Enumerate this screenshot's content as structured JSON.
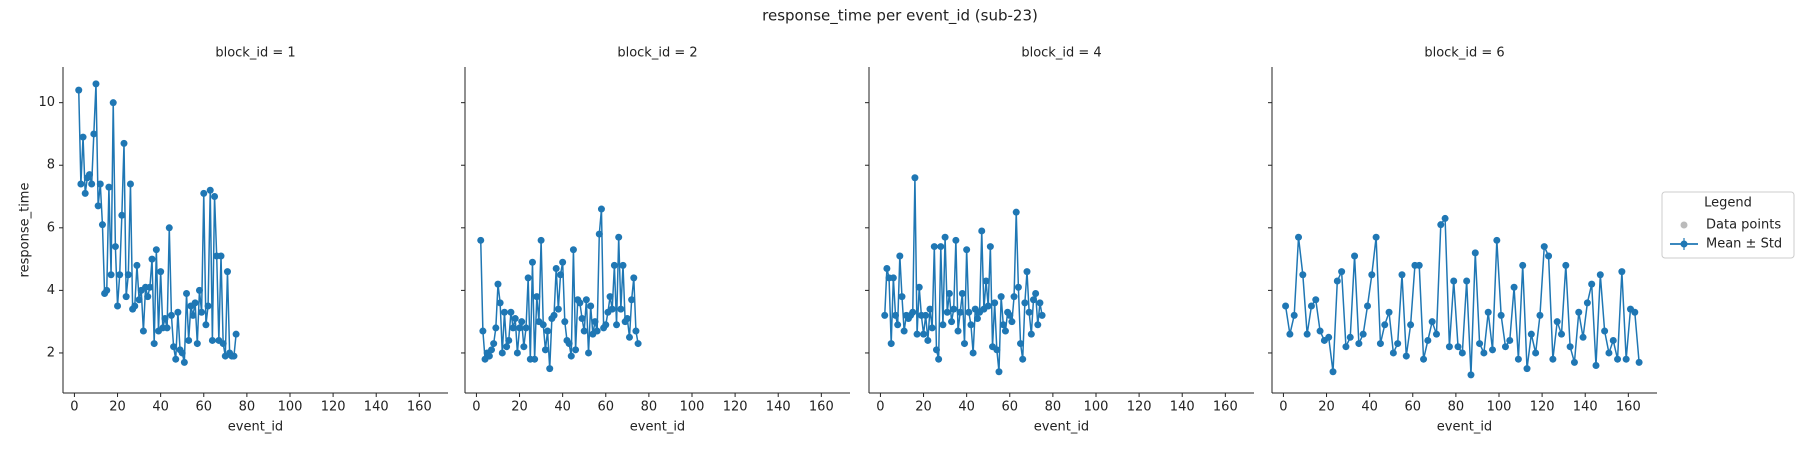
{
  "title": "response_time per event_id (sub-23)",
  "legend": {
    "title": "Legend",
    "entries": [
      {
        "name": "Data points",
        "color": "#bbbbbb"
      },
      {
        "name": "Mean ± Std",
        "color": "#1f77b4"
      }
    ]
  },
  "chart_data": [
    {
      "type": "line",
      "title": "block_id = 1",
      "x_label": "event_id",
      "y_label": "response_time",
      "color": "#1f77b4",
      "xlim": [
        -5.3,
        173.3
      ],
      "ylim": [
        0.72,
        11.14
      ],
      "xticks": [
        0,
        20,
        40,
        60,
        80,
        100,
        120,
        140,
        160
      ],
      "yticks": [
        2,
        4,
        6,
        8,
        10
      ],
      "x": [
        2,
        3,
        4,
        5,
        6,
        7,
        8,
        9,
        10,
        11,
        12,
        13,
        14,
        15,
        16,
        17,
        18,
        19,
        20,
        21,
        22,
        23,
        24,
        25,
        26,
        27,
        28,
        29,
        30,
        31,
        32,
        33,
        34,
        35,
        36,
        37,
        38,
        39,
        40,
        41,
        42,
        43,
        44,
        45,
        46,
        47,
        48,
        49,
        50,
        51,
        52,
        53,
        54,
        55,
        56,
        57,
        58,
        59,
        60,
        61,
        62,
        63,
        64,
        65,
        66,
        67,
        68,
        69,
        70,
        71,
        72,
        73,
        74,
        75
      ],
      "values": [
        10.4,
        7.4,
        8.9,
        7.1,
        7.6,
        7.7,
        7.4,
        9.0,
        10.6,
        6.7,
        7.4,
        6.1,
        3.9,
        4.0,
        7.3,
        4.5,
        10.0,
        5.4,
        3.5,
        4.5,
        6.4,
        8.7,
        3.8,
        4.5,
        7.4,
        3.4,
        3.5,
        4.8,
        3.7,
        4.0,
        2.7,
        4.1,
        3.8,
        4.1,
        5.0,
        2.3,
        5.3,
        2.7,
        4.6,
        2.8,
        3.1,
        2.8,
        6.0,
        3.2,
        2.2,
        1.8,
        3.3,
        2.1,
        2.0,
        1.7,
        3.9,
        2.4,
        3.5,
        3.2,
        3.6,
        2.3,
        4.0,
        3.3,
        7.1,
        2.9,
        3.5,
        7.2,
        2.4,
        7.0,
        5.1,
        2.4,
        5.1,
        2.3,
        1.9,
        4.6,
        2.0,
        1.9,
        1.9,
        2.6
      ]
    },
    {
      "type": "line",
      "title": "block_id = 2",
      "x_label": "event_id",
      "color": "#1f77b4",
      "xlim": [
        -5.3,
        173.3
      ],
      "ylim": [
        0.72,
        11.14
      ],
      "xticks": [
        0,
        20,
        40,
        60,
        80,
        100,
        120,
        140,
        160
      ],
      "yticks": [
        2,
        4,
        6,
        8,
        10
      ],
      "x": [
        2,
        3,
        4,
        5,
        6,
        7,
        8,
        9,
        10,
        11,
        12,
        13,
        14,
        15,
        16,
        17,
        18,
        19,
        20,
        21,
        22,
        23,
        24,
        25,
        26,
        27,
        28,
        29,
        30,
        31,
        32,
        33,
        34,
        35,
        36,
        37,
        38,
        39,
        40,
        41,
        42,
        43,
        44,
        45,
        46,
        47,
        48,
        49,
        50,
        51,
        52,
        53,
        54,
        55,
        56,
        57,
        58,
        59,
        60,
        61,
        62,
        63,
        64,
        65,
        66,
        67,
        68,
        69,
        70,
        71,
        72,
        73,
        74,
        75
      ],
      "values": [
        5.6,
        2.7,
        1.8,
        2.0,
        1.9,
        2.1,
        2.3,
        2.8,
        4.2,
        3.6,
        2.0,
        3.3,
        2.2,
        2.4,
        3.3,
        2.8,
        3.1,
        2.0,
        2.8,
        3.0,
        2.2,
        2.8,
        4.4,
        1.8,
        4.9,
        1.8,
        3.8,
        3.0,
        5.6,
        2.9,
        2.1,
        2.7,
        1.5,
        3.1,
        3.2,
        4.7,
        3.4,
        4.5,
        4.9,
        3.0,
        2.4,
        2.3,
        1.9,
        5.3,
        2.1,
        3.7,
        3.6,
        3.1,
        2.7,
        3.7,
        2.0,
        3.5,
        2.6,
        3.0,
        2.7,
        5.8,
        6.6,
        2.8,
        2.9,
        3.3,
        3.8,
        3.4,
        4.8,
        2.9,
        5.7,
        3.4,
        4.8,
        3.0,
        3.1,
        2.5,
        3.7,
        4.4,
        2.7,
        2.3
      ]
    },
    {
      "type": "line",
      "title": "block_id = 4",
      "x_label": "event_id",
      "color": "#1f77b4",
      "xlim": [
        -5.3,
        173.3
      ],
      "ylim": [
        0.72,
        11.14
      ],
      "xticks": [
        0,
        20,
        40,
        60,
        80,
        100,
        120,
        140,
        160
      ],
      "yticks": [
        2,
        4,
        6,
        8,
        10
      ],
      "x": [
        2,
        3,
        4,
        5,
        6,
        7,
        8,
        9,
        10,
        11,
        12,
        13,
        14,
        15,
        16,
        17,
        18,
        19,
        20,
        21,
        22,
        23,
        24,
        25,
        26,
        27,
        28,
        29,
        30,
        31,
        32,
        33,
        34,
        35,
        36,
        37,
        38,
        39,
        40,
        41,
        42,
        43,
        44,
        45,
        46,
        47,
        48,
        49,
        50,
        51,
        52,
        53,
        54,
        55,
        56,
        57,
        58,
        59,
        60,
        61,
        62,
        63,
        64,
        65,
        66,
        67,
        68,
        69,
        70,
        71,
        72,
        73,
        74,
        75
      ],
      "values": [
        3.2,
        4.7,
        4.4,
        2.3,
        4.4,
        3.2,
        2.9,
        5.1,
        3.8,
        2.7,
        3.2,
        3.1,
        3.2,
        3.3,
        7.6,
        2.6,
        4.1,
        3.2,
        2.6,
        3.2,
        2.4,
        3.4,
        2.8,
        5.4,
        2.1,
        1.8,
        5.4,
        2.9,
        5.7,
        3.3,
        3.9,
        3.0,
        3.4,
        5.6,
        2.7,
        3.3,
        3.9,
        2.3,
        5.3,
        3.3,
        2.9,
        2.0,
        3.4,
        3.1,
        3.3,
        5.9,
        3.4,
        4.3,
        3.5,
        5.4,
        2.2,
        3.6,
        2.1,
        1.4,
        3.8,
        2.9,
        2.7,
        3.3,
        3.2,
        3.0,
        3.8,
        6.5,
        4.1,
        2.3,
        1.8,
        3.6,
        4.6,
        3.3,
        2.6,
        3.7,
        3.9,
        2.9,
        3.6,
        3.2
      ]
    },
    {
      "type": "line",
      "title": "block_id = 6",
      "x_label": "event_id",
      "color": "#1f77b4",
      "xlim": [
        -5.3,
        173.3
      ],
      "ylim": [
        0.72,
        11.14
      ],
      "xticks": [
        0,
        20,
        40,
        60,
        80,
        100,
        120,
        140,
        160
      ],
      "yticks": [
        2,
        4,
        6,
        8,
        10
      ],
      "x": [
        1,
        3,
        5,
        7,
        9,
        11,
        13,
        15,
        17,
        19,
        21,
        23,
        25,
        27,
        29,
        31,
        33,
        35,
        37,
        39,
        41,
        43,
        45,
        47,
        49,
        51,
        53,
        55,
        57,
        59,
        61,
        63,
        65,
        67,
        69,
        71,
        73,
        75,
        77,
        79,
        81,
        83,
        85,
        87,
        89,
        91,
        93,
        95,
        97,
        99,
        101,
        103,
        105,
        107,
        109,
        111,
        113,
        115,
        117,
        119,
        121,
        123,
        125,
        127,
        129,
        131,
        133,
        135,
        137,
        139,
        141,
        143,
        145,
        147,
        149,
        151,
        153,
        155,
        157,
        159,
        161,
        163,
        165
      ],
      "values": [
        3.5,
        2.6,
        3.2,
        5.7,
        4.5,
        2.6,
        3.5,
        3.7,
        2.7,
        2.4,
        2.5,
        1.4,
        4.3,
        4.6,
        2.2,
        2.5,
        5.1,
        2.3,
        2.6,
        3.5,
        4.5,
        5.7,
        2.3,
        2.9,
        3.3,
        2.0,
        2.3,
        4.5,
        1.9,
        2.9,
        4.8,
        4.8,
        1.8,
        2.4,
        3.0,
        2.6,
        6.1,
        6.3,
        2.2,
        4.3,
        2.2,
        2.0,
        4.3,
        1.3,
        5.2,
        2.3,
        2.0,
        3.3,
        2.1,
        5.6,
        3.2,
        2.2,
        2.4,
        4.1,
        1.8,
        4.8,
        1.5,
        2.6,
        2.0,
        3.2,
        5.4,
        5.1,
        1.8,
        3.0,
        2.6,
        4.8,
        2.2,
        1.7,
        3.3,
        2.5,
        3.6,
        4.2,
        1.6,
        4.5,
        2.7,
        2.0,
        2.4,
        1.8,
        4.6,
        1.8,
        3.4,
        3.3,
        1.7
      ]
    }
  ]
}
